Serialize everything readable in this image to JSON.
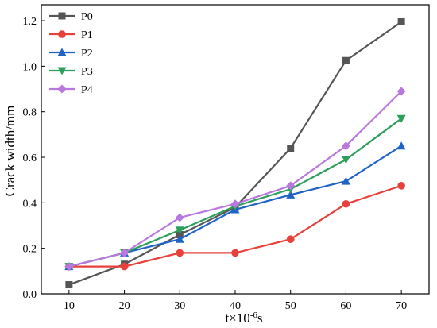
{
  "chart_data": {
    "type": "line",
    "title": "",
    "xlabel_main": "t×10",
    "xlabel_exp": "-6",
    "xlabel_unit": "s",
    "ylabel": "Crack width/mm",
    "x": [
      10,
      20,
      30,
      40,
      50,
      60,
      70
    ],
    "xlim": [
      5,
      75
    ],
    "ylim": [
      0.0,
      1.27
    ],
    "xticks": [
      10,
      20,
      30,
      40,
      50,
      60,
      70
    ],
    "yticks": [
      0.0,
      0.2,
      0.4,
      0.6,
      0.8,
      1.0,
      1.2
    ],
    "grid": false,
    "legend_position": "top-left",
    "series": [
      {
        "name": "P0",
        "color": "#555555",
        "marker": "square",
        "values": [
          0.04,
          0.13,
          0.26,
          0.38,
          0.64,
          1.025,
          1.195
        ]
      },
      {
        "name": "P1",
        "color": "#e8413c",
        "marker": "circle",
        "values": [
          0.12,
          0.12,
          0.18,
          0.18,
          0.24,
          0.395,
          0.475
        ]
      },
      {
        "name": "P2",
        "color": "#1f63c6",
        "marker": "triangle-up",
        "values": [
          0.12,
          0.18,
          0.24,
          0.37,
          0.435,
          0.495,
          0.65
        ]
      },
      {
        "name": "P3",
        "color": "#2ca05a",
        "marker": "triangle-down",
        "values": [
          0.12,
          0.18,
          0.28,
          0.385,
          0.46,
          0.59,
          0.77
        ]
      },
      {
        "name": "P4",
        "color": "#b977e0",
        "marker": "diamond",
        "values": [
          0.12,
          0.18,
          0.335,
          0.395,
          0.475,
          0.65,
          0.89
        ]
      }
    ]
  }
}
